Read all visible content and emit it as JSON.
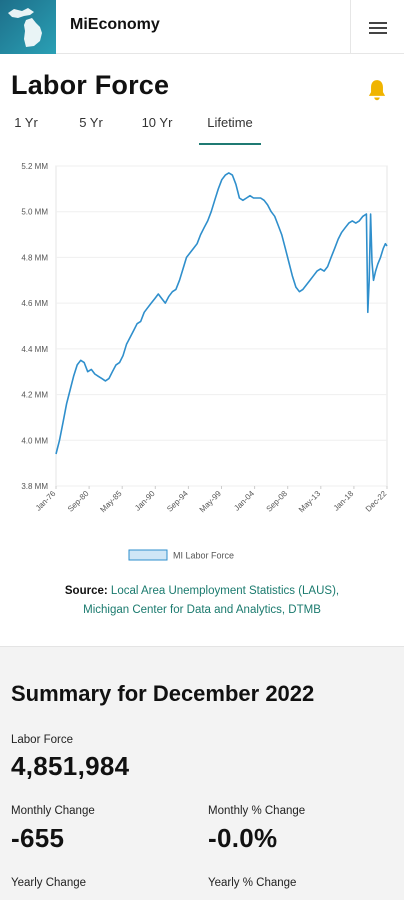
{
  "app": {
    "title": "MiEconomy"
  },
  "page": {
    "title": "Labor Force"
  },
  "tabs": [
    {
      "label": "1 Yr",
      "active": false
    },
    {
      "label": "5 Yr",
      "active": false
    },
    {
      "label": "10 Yr",
      "active": false
    },
    {
      "label": "Lifetime",
      "active": true
    }
  ],
  "chart_data": {
    "type": "line",
    "title": "",
    "xlabel": "",
    "ylabel": "",
    "y_ticks": [
      "5.2 MM",
      "5.0 MM",
      "4.8 MM",
      "4.6 MM",
      "4.4 MM",
      "4.2 MM",
      "4.0 MM",
      "3.8 MM"
    ],
    "ylim": [
      3.8,
      5.2
    ],
    "x_ticks": [
      "Jan-76",
      "Sep-80",
      "May-85",
      "Jan-90",
      "Sep-94",
      "May-99",
      "Jan-04",
      "Sep-08",
      "May-13",
      "Jan-18",
      "Dec-22"
    ],
    "xlim": [
      1976.0,
      2022.92
    ],
    "legend_position": "bottom",
    "series": [
      {
        "name": "MI Labor Force",
        "color": "#2f8fcc",
        "points": [
          [
            1976.0,
            3.94
          ],
          [
            1976.5,
            4.0
          ],
          [
            1977.0,
            4.08
          ],
          [
            1977.5,
            4.16
          ],
          [
            1978.0,
            4.22
          ],
          [
            1978.5,
            4.28
          ],
          [
            1979.0,
            4.33
          ],
          [
            1979.5,
            4.35
          ],
          [
            1980.0,
            4.34
          ],
          [
            1980.5,
            4.3
          ],
          [
            1981.0,
            4.31
          ],
          [
            1981.5,
            4.29
          ],
          [
            1982.0,
            4.28
          ],
          [
            1982.5,
            4.27
          ],
          [
            1983.0,
            4.26
          ],
          [
            1983.5,
            4.27
          ],
          [
            1984.0,
            4.3
          ],
          [
            1984.5,
            4.33
          ],
          [
            1985.0,
            4.34
          ],
          [
            1985.5,
            4.37
          ],
          [
            1986.0,
            4.42
          ],
          [
            1986.5,
            4.45
          ],
          [
            1987.0,
            4.48
          ],
          [
            1987.5,
            4.51
          ],
          [
            1988.0,
            4.52
          ],
          [
            1988.5,
            4.56
          ],
          [
            1989.0,
            4.58
          ],
          [
            1989.5,
            4.6
          ],
          [
            1990.0,
            4.62
          ],
          [
            1990.5,
            4.64
          ],
          [
            1991.0,
            4.62
          ],
          [
            1991.5,
            4.6
          ],
          [
            1992.0,
            4.63
          ],
          [
            1992.5,
            4.65
          ],
          [
            1993.0,
            4.66
          ],
          [
            1993.5,
            4.7
          ],
          [
            1994.0,
            4.75
          ],
          [
            1994.5,
            4.8
          ],
          [
            1995.0,
            4.82
          ],
          [
            1995.5,
            4.84
          ],
          [
            1996.0,
            4.86
          ],
          [
            1996.5,
            4.9
          ],
          [
            1997.0,
            4.93
          ],
          [
            1997.5,
            4.96
          ],
          [
            1998.0,
            5.0
          ],
          [
            1998.5,
            5.05
          ],
          [
            1999.0,
            5.1
          ],
          [
            1999.5,
            5.14
          ],
          [
            2000.0,
            5.16
          ],
          [
            2000.5,
            5.17
          ],
          [
            2001.0,
            5.16
          ],
          [
            2001.5,
            5.12
          ],
          [
            2002.0,
            5.06
          ],
          [
            2002.5,
            5.05
          ],
          [
            2003.0,
            5.06
          ],
          [
            2003.5,
            5.07
          ],
          [
            2004.0,
            5.06
          ],
          [
            2004.5,
            5.06
          ],
          [
            2005.0,
            5.06
          ],
          [
            2005.5,
            5.05
          ],
          [
            2006.0,
            5.03
          ],
          [
            2006.5,
            5.0
          ],
          [
            2007.0,
            4.98
          ],
          [
            2007.5,
            4.94
          ],
          [
            2008.0,
            4.9
          ],
          [
            2008.5,
            4.84
          ],
          [
            2009.0,
            4.78
          ],
          [
            2009.5,
            4.72
          ],
          [
            2010.0,
            4.67
          ],
          [
            2010.5,
            4.65
          ],
          [
            2011.0,
            4.66
          ],
          [
            2011.5,
            4.68
          ],
          [
            2012.0,
            4.7
          ],
          [
            2012.5,
            4.72
          ],
          [
            2013.0,
            4.74
          ],
          [
            2013.5,
            4.75
          ],
          [
            2014.0,
            4.74
          ],
          [
            2014.5,
            4.76
          ],
          [
            2015.0,
            4.8
          ],
          [
            2015.5,
            4.84
          ],
          [
            2016.0,
            4.88
          ],
          [
            2016.5,
            4.91
          ],
          [
            2017.0,
            4.93
          ],
          [
            2017.5,
            4.95
          ],
          [
            2018.0,
            4.96
          ],
          [
            2018.5,
            4.95
          ],
          [
            2019.0,
            4.96
          ],
          [
            2019.5,
            4.98
          ],
          [
            2020.0,
            4.99
          ],
          [
            2020.2,
            4.56
          ],
          [
            2020.4,
            4.7
          ],
          [
            2020.6,
            4.99
          ],
          [
            2020.8,
            4.78
          ],
          [
            2021.0,
            4.7
          ],
          [
            2021.3,
            4.74
          ],
          [
            2021.6,
            4.77
          ],
          [
            2022.0,
            4.8
          ],
          [
            2022.4,
            4.84
          ],
          [
            2022.7,
            4.86
          ],
          [
            2022.92,
            4.85
          ]
        ]
      }
    ]
  },
  "source": {
    "label": "Source:",
    "link1": "Local Area Unemployment Statistics (LAUS),",
    "link2": "Michigan Center for Data and Analytics, DTMB"
  },
  "summary": {
    "title": "Summary for December 2022",
    "labor_force_label": "Labor Force",
    "labor_force_value": "4,851,984",
    "monthly_change_label": "Monthly Change",
    "monthly_change_value": "-655",
    "monthly_pct_label": "Monthly % Change",
    "monthly_pct_value": "-0.0%",
    "yearly_change_label": "Yearly Change",
    "yearly_pct_label": "Yearly % Change"
  },
  "colors": {
    "accent": "#1f7a73",
    "bell": "#f0b400",
    "line": "#2f8fcc",
    "logo": "#1d6f8a"
  }
}
